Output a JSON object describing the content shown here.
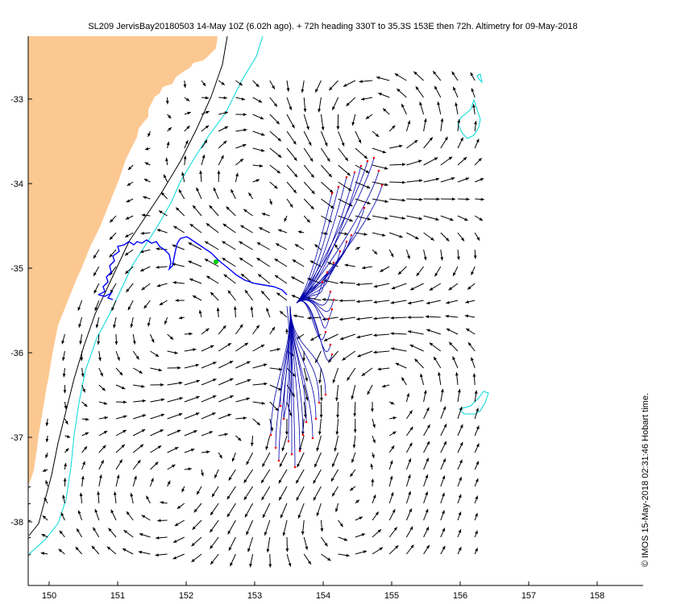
{
  "title": "SL209 JervisBay20180503 14-May 10Z (6.02h ago). + 72h heading 330T to 35.3S 153E then 72h. Altimetry for 09-May-2018",
  "credit": "© IMOS 15-May-2018 02:31:46 Hobart time.",
  "axes": {
    "x_ticks": [
      "150",
      "151",
      "152",
      "153",
      "154",
      "155",
      "156",
      "157",
      "158"
    ],
    "y_ticks": [
      "-33",
      "-34",
      "-35",
      "-36",
      "-37",
      "-38"
    ]
  },
  "colors": {
    "land": "#fcc891",
    "isobath_200m": "#000000",
    "isobath_2000m": "#00d8d8",
    "glider_track": "#0000ff",
    "current_arrows": "#000000",
    "forecast_paths": "#0000aa",
    "forecast_endpoints": "#ff0000",
    "glider_position": "#00cc00"
  },
  "icons": {
    "arrow": "current-vector-arrow",
    "glider": "glider-position-marker"
  }
}
